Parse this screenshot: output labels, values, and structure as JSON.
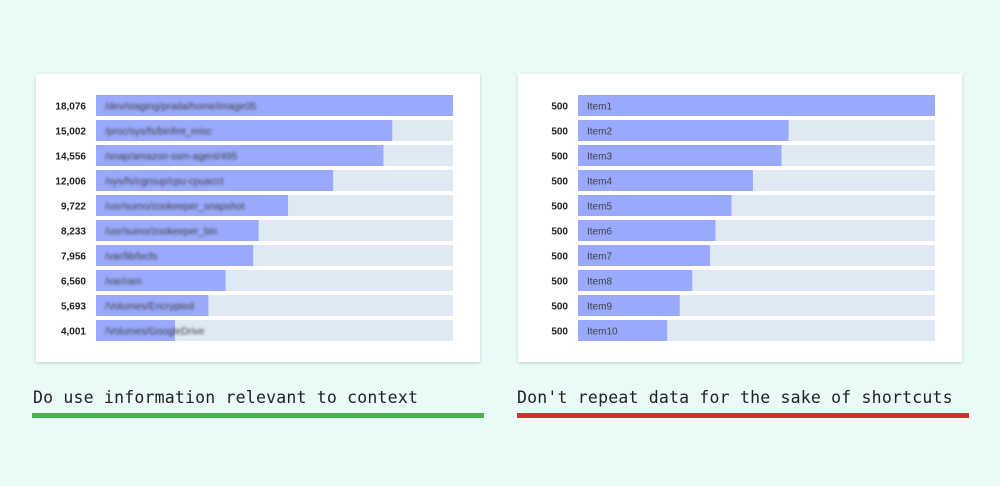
{
  "colors": {
    "background": "#eafaf7",
    "bar": "#9aa9fb",
    "track": "#dfe9f3",
    "do_underline": "#4caf50",
    "dont_underline": "#d32f2f"
  },
  "captions": {
    "do": "Do use information relevant to context",
    "dont": "Don't repeat data for the sake of shortcuts"
  },
  "chart_data": [
    {
      "type": "bar",
      "orientation": "horizontal",
      "labels_blurred": true,
      "categories": [
        "/dev/staging/prada/home/image05",
        "/proc/sys/fs/binfmt_misc",
        "/snap/amazon-ssm-agent/495",
        "/sys/fs/cgroup/cpu-cpuacct",
        "/usr/sumo/zookeeper_snapshot",
        "/usr/sumo/zookeeper_bin",
        "/var/lib/lxcfs",
        "/var/ram",
        "/Volumes/Encrypted",
        "/Volumes/GoogleDrive"
      ],
      "values": [
        18076,
        15002,
        14556,
        12006,
        9722,
        8233,
        7956,
        6560,
        5693,
        4001
      ],
      "value_labels": [
        "18,076",
        "15,002",
        "14,556",
        "12,006",
        "9,722",
        "8,233",
        "7,956",
        "6,560",
        "5,693",
        "4,001"
      ],
      "xlim": [
        0,
        18076
      ]
    },
    {
      "type": "bar",
      "orientation": "horizontal",
      "labels_blurred": false,
      "categories": [
        "Item1",
        "Item2",
        "Item3",
        "Item4",
        "Item5",
        "Item6",
        "Item7",
        "Item8",
        "Item9",
        "Item10"
      ],
      "values": [
        500,
        500,
        500,
        500,
        500,
        500,
        500,
        500,
        500,
        500
      ],
      "value_labels": [
        "500",
        "500",
        "500",
        "500",
        "500",
        "500",
        "500",
        "500",
        "500",
        "500"
      ],
      "bar_fractions": [
        1.0,
        0.59,
        0.57,
        0.49,
        0.43,
        0.385,
        0.37,
        0.32,
        0.285,
        0.25
      ]
    }
  ]
}
